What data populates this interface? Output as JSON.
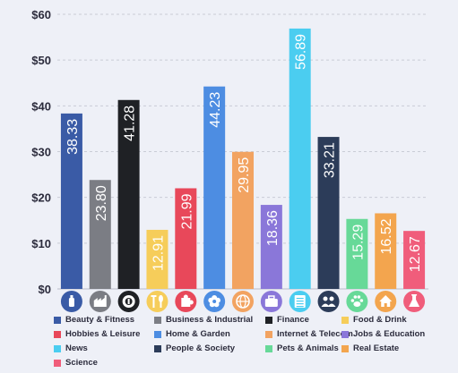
{
  "chart_data": {
    "type": "bar",
    "title": "",
    "xlabel": "",
    "ylabel": "",
    "ylim": [
      0,
      60
    ],
    "y_ticks": [
      "$0",
      "$10",
      "$20",
      "$30",
      "$40",
      "$50",
      "$60"
    ],
    "grid": "horizontal dashed",
    "legend_placement": "bottom",
    "categories": [
      "Beauty & Fitness",
      "Business & Industrial",
      "Finance",
      "Food & Drink",
      "Hobbies & Leisure",
      "Home & Garden",
      "Internet & Telecom",
      "Jobs & Education",
      "News",
      "People & Society",
      "Pets & Animals",
      "Real Estate",
      "Science"
    ],
    "values": [
      38.33,
      23.8,
      41.28,
      12.91,
      21.99,
      44.23,
      29.95,
      18.36,
      56.89,
      33.21,
      15.29,
      16.52,
      12.67
    ],
    "value_labels": [
      "38.33",
      "23.80",
      "41.28",
      "12.91",
      "21.99",
      "44.23",
      "29.95",
      "18.36",
      "56.89",
      "33.21",
      "15.29",
      "16.52",
      "12.67"
    ],
    "colors": [
      "#3a5ba6",
      "#7b7d84",
      "#1f2125",
      "#f6cd5a",
      "#e8485a",
      "#4d8de2",
      "#f2a361",
      "#8a77d9",
      "#4bcdf0",
      "#2c3c59",
      "#67d998",
      "#f3a54e",
      "#f05d7b"
    ],
    "icons": [
      "bottle-icon",
      "factory-icon",
      "coin-icon",
      "utensils-icon",
      "puzzle-icon",
      "flower-icon",
      "globe-icon",
      "briefcase-icon",
      "newspaper-icon",
      "people-icon",
      "paw-icon",
      "house-icon",
      "flask-icon"
    ]
  }
}
